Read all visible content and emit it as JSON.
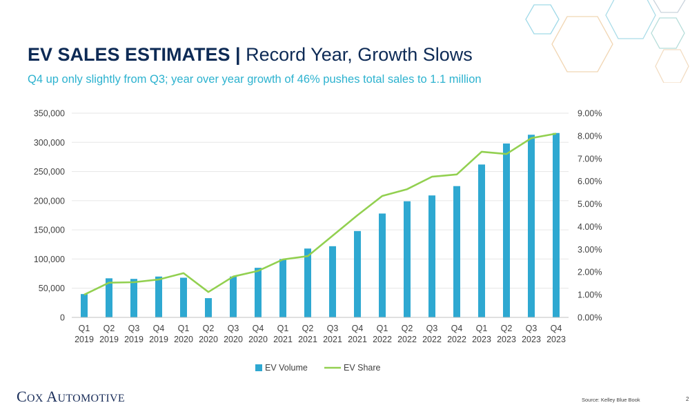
{
  "slide": {
    "title_bold": "EV SALES ESTIMATES |",
    "title_rest": " Record Year, Growth Slows",
    "subtitle": "Q4 up only slightly from Q3; year over year growth of 46% pushes total sales to 1.1 million",
    "source": "Source: Kelley Blue Book",
    "page_number": "2",
    "logo_text": "Cox Automotive"
  },
  "colors": {
    "bar": "#2ea8d1",
    "line": "#92d050",
    "title": "#0d2a55",
    "subtitle": "#2cb2cf",
    "gridline": "#e6e6e6",
    "axis": "#bfbfbf"
  },
  "chart_data": {
    "type": "bar",
    "categories": [
      "Q1 2019",
      "Q2 2019",
      "Q3 2019",
      "Q4 2019",
      "Q1 2020",
      "Q2 2020",
      "Q3 2020",
      "Q4 2020",
      "Q1 2021",
      "Q2 2021",
      "Q3 2021",
      "Q4 2021",
      "Q1 2022",
      "Q2 2022",
      "Q3 2022",
      "Q4 2022",
      "Q1 2023",
      "Q2 2023",
      "Q3 2023",
      "Q4 2023"
    ],
    "category_lines": [
      [
        "Q1",
        "2019"
      ],
      [
        "Q2",
        "2019"
      ],
      [
        "Q3",
        "2019"
      ],
      [
        "Q4",
        "2019"
      ],
      [
        "Q1",
        "2020"
      ],
      [
        "Q2",
        "2020"
      ],
      [
        "Q3",
        "2020"
      ],
      [
        "Q4",
        "2020"
      ],
      [
        "Q1",
        "2021"
      ],
      [
        "Q2",
        "2021"
      ],
      [
        "Q3",
        "2021"
      ],
      [
        "Q4",
        "2021"
      ],
      [
        "Q1",
        "2022"
      ],
      [
        "Q2",
        "2022"
      ],
      [
        "Q3",
        "2022"
      ],
      [
        "Q4",
        "2022"
      ],
      [
        "Q1",
        "2023"
      ],
      [
        "Q2",
        "2023"
      ],
      [
        "Q3",
        "2023"
      ],
      [
        "Q4",
        "2023"
      ]
    ],
    "series": [
      {
        "name": "EV Volume",
        "type": "bar",
        "axis": "left",
        "values": [
          40000,
          67000,
          66000,
          70000,
          68000,
          33000,
          70000,
          85000,
          100000,
          118000,
          122000,
          148000,
          178000,
          199000,
          209000,
          225000,
          262000,
          298000,
          313000,
          316000
        ]
      },
      {
        "name": "EV Share",
        "type": "line",
        "axis": "right",
        "values": [
          1.0,
          1.53,
          1.55,
          1.67,
          1.95,
          1.12,
          1.8,
          2.05,
          2.55,
          2.7,
          3.6,
          4.5,
          5.35,
          5.65,
          6.2,
          6.3,
          7.3,
          7.2,
          7.9,
          8.1
        ]
      }
    ],
    "left_axis": {
      "ylim": [
        0,
        350000
      ],
      "ticks": [
        0,
        50000,
        100000,
        150000,
        200000,
        250000,
        300000,
        350000
      ],
      "tick_labels": [
        "0",
        "50,000",
        "100,000",
        "150,000",
        "200,000",
        "250,000",
        "300,000",
        "350,000"
      ]
    },
    "right_axis": {
      "ylim": [
        0,
        9
      ],
      "ticks": [
        0,
        1,
        2,
        3,
        4,
        5,
        6,
        7,
        8,
        9
      ],
      "tick_labels": [
        "0.00%",
        "1.00%",
        "2.00%",
        "3.00%",
        "4.00%",
        "5.00%",
        "6.00%",
        "7.00%",
        "8.00%",
        "9.00%"
      ]
    },
    "grid": true,
    "legend": {
      "position": "bottom",
      "entries": [
        "EV Volume",
        "EV Share"
      ]
    }
  }
}
